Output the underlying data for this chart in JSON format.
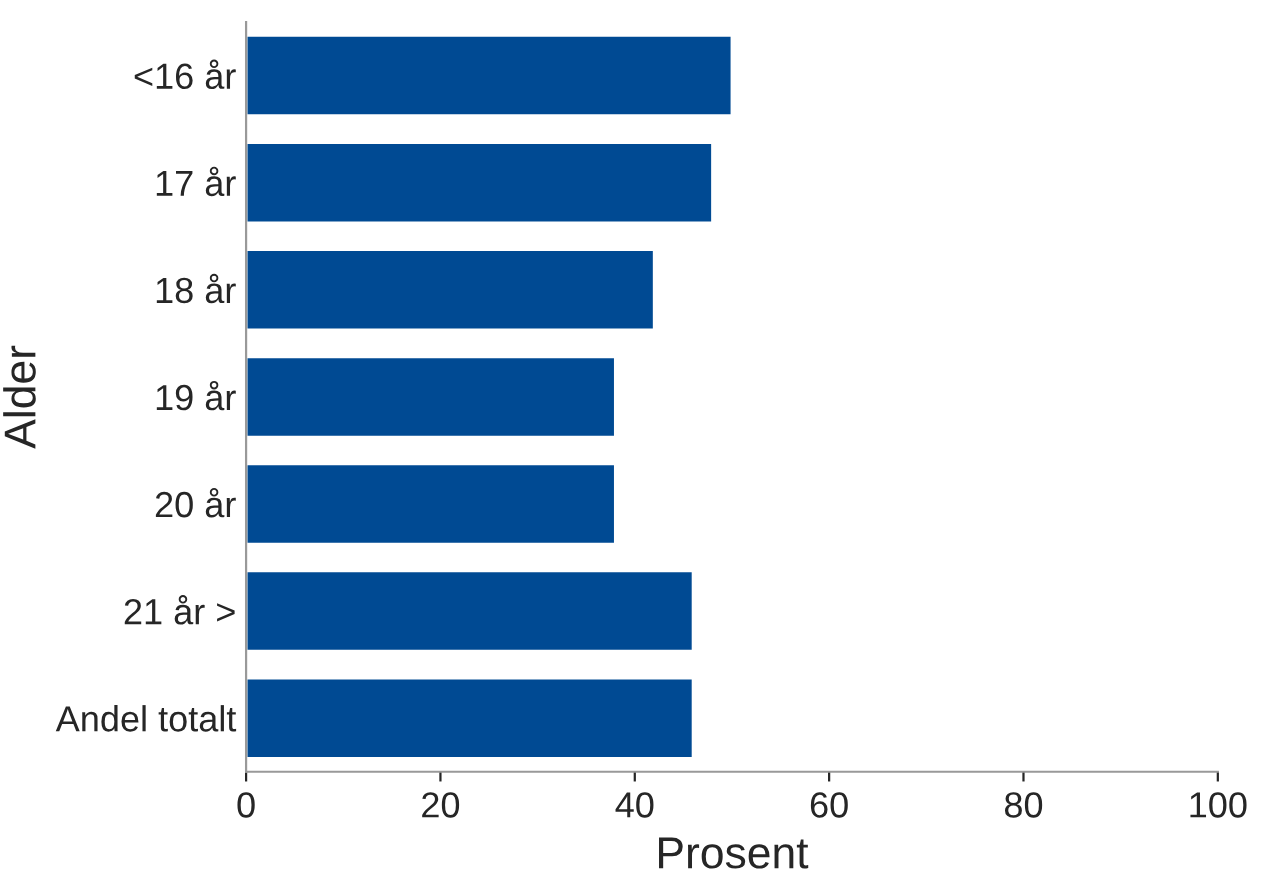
{
  "chart_data": {
    "type": "bar",
    "orientation": "horizontal",
    "xlabel": "Prosent",
    "ylabel": "Alder",
    "categories": [
      "<16 år",
      "17 år",
      "18 år",
      "19 år",
      "20 år",
      "21 år >",
      "Andel totalt"
    ],
    "values": [
      50,
      48,
      42,
      38,
      38,
      46,
      46
    ],
    "color": "#004a93",
    "xlim": [
      0,
      100
    ],
    "xticks": [
      0,
      20,
      40,
      60,
      80,
      100
    ],
    "grid": false
  }
}
